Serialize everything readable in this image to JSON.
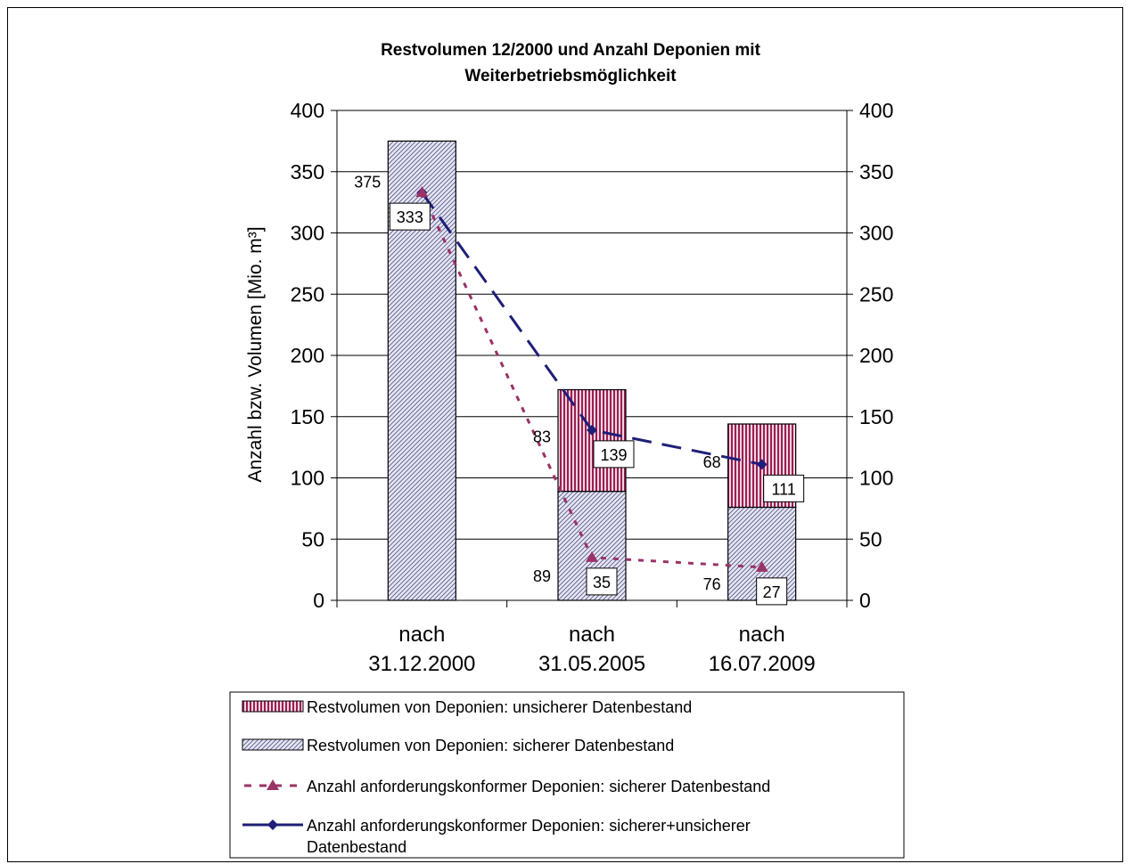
{
  "chart_data": {
    "type": "bar",
    "title": [
      "Restvolumen 12/2000 und Anzahl Deponien mit",
      "Weiterbetriebsmöglichkeit"
    ],
    "ylabel": "Anzahl bzw. Volumen [Mio. m³]",
    "ylim": [
      0,
      400
    ],
    "yticks": [
      "0",
      "50",
      "100",
      "150",
      "200",
      "250",
      "300",
      "350",
      "400"
    ],
    "y2ticks": [
      "0",
      "50",
      "100",
      "150",
      "200",
      "250",
      "300",
      "350",
      "400"
    ],
    "categories": [
      [
        "nach",
        "31.12.2000"
      ],
      [
        "nach",
        "31.05.2005"
      ],
      [
        "nach",
        "16.07.2009"
      ]
    ],
    "series": [
      {
        "name": "Restvolumen von Deponien: sicherer Datenbestand",
        "kind": "stacked-bar",
        "values": [
          375,
          89,
          76
        ],
        "labels": [
          "375",
          "89",
          "76"
        ],
        "color": "#c8c8e8"
      },
      {
        "name": "Restvolumen von Deponien: unsicherer Datenbestand",
        "kind": "stacked-bar",
        "values": [
          0,
          83,
          68
        ],
        "labels": [
          "",
          "83",
          "68"
        ],
        "color": "#9a2050"
      },
      {
        "name": "Anzahl anforderungskonformer Deponien: sicherer Datenbestand",
        "kind": "line",
        "values": [
          333,
          35,
          27
        ],
        "labels": [
          "",
          "35",
          "27"
        ],
        "color": "#9a3366"
      },
      {
        "name": "Anzahl anforderungskonformer Deponien: sicherer+unsicherer Datenbestand",
        "kind": "line",
        "values": [
          333,
          139,
          111
        ],
        "labels": [
          "333",
          "139",
          "111"
        ],
        "color": "#1f1f78"
      }
    ],
    "legend": {
      "placement": "bottom",
      "items": [
        [
          "Restvolumen von Deponien: unsicherer Datenbestand"
        ],
        [
          "Restvolumen von Deponien: sicherer Datenbestand"
        ],
        [
          "Anzahl anforderungskonformer Deponien: sicherer Datenbestand"
        ],
        [
          "Anzahl anforderungskonformer Deponien: sicherer+unsicherer",
          "Datenbestand"
        ]
      ]
    },
    "grid": true
  }
}
